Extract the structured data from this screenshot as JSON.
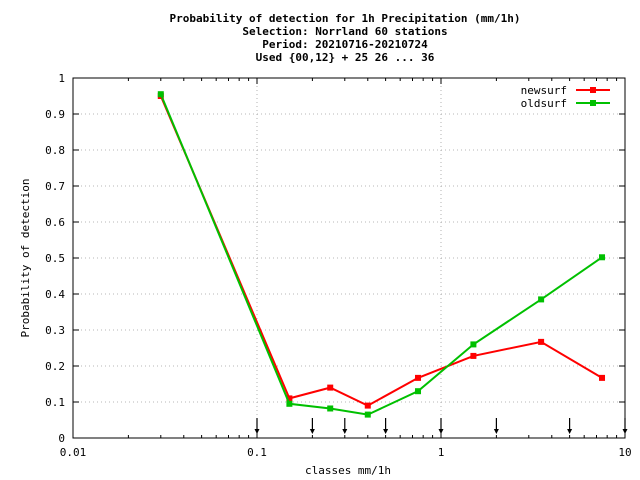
{
  "chart_data": {
    "type": "line",
    "title_lines": [
      "Probability of detection  for 1h Precipitation (mm/1h)",
      "Selection: Norrland     60 stations",
      "Period: 20210716-20210724",
      "Used {00,12} + 25 26 ... 36"
    ],
    "xlabel": "classes mm/1h",
    "ylabel": "Probability of detection",
    "xscale": "log",
    "xlim": [
      0.01,
      10
    ],
    "ylim": [
      0,
      1
    ],
    "xticks": [
      0.01,
      0.1,
      1,
      10
    ],
    "xtick_labels": [
      "0.01",
      "0.1",
      "1",
      "10"
    ],
    "yticks": [
      0,
      0.1,
      0.2,
      0.3,
      0.4,
      0.5,
      0.6,
      0.7,
      0.8,
      0.9,
      1
    ],
    "ytick_labels": [
      "0",
      "0.1",
      "0.2",
      "0.3",
      "0.4",
      "0.5",
      "0.6",
      "0.7",
      "0.8",
      "0.9",
      "1"
    ],
    "grid": true,
    "legend_position": "top-right",
    "class_limit_markers": [
      0.1,
      0.2,
      0.3,
      0.5,
      1,
      2,
      5,
      10
    ],
    "series": [
      {
        "name": "newsurf",
        "color": "#ff0000",
        "x": [
          0.03,
          0.15,
          0.25,
          0.4,
          0.75,
          1.5,
          3.5,
          7.5
        ],
        "y": [
          0.95,
          0.11,
          0.14,
          0.09,
          0.167,
          0.228,
          0.267,
          0.167
        ]
      },
      {
        "name": "oldsurf",
        "color": "#00c000",
        "x": [
          0.03,
          0.15,
          0.25,
          0.4,
          0.75,
          1.5,
          3.5,
          7.5
        ],
        "y": [
          0.955,
          0.095,
          0.082,
          0.065,
          0.13,
          0.26,
          0.385,
          0.502
        ]
      }
    ]
  }
}
